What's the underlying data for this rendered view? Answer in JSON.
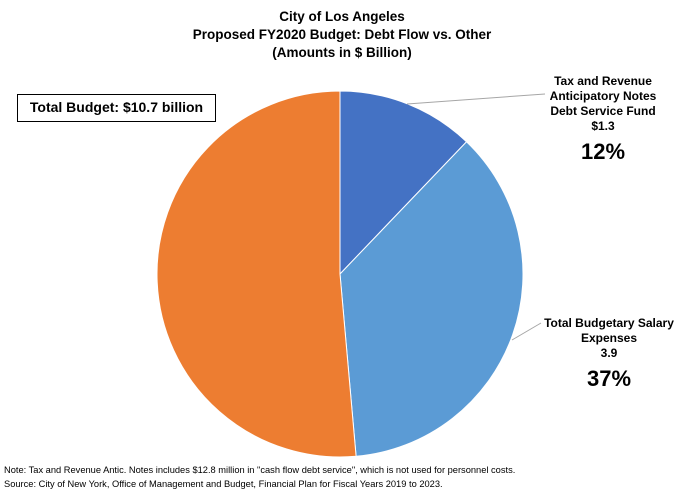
{
  "title": {
    "line1": "City of Los Angeles",
    "line2": "Proposed FY2020 Budget: Debt Flow vs. Other",
    "line3": "(Amounts in $ Billion)"
  },
  "total_box": "Total Budget: $10.7 billion",
  "notes": {
    "note": "Note: Tax and Revenue Antic. Notes includes $12.8 million in \"cash flow debt service\", which is not used for personnel costs.",
    "source": "Source: City of New York, Office of Management and Budget, Financial Plan for Fiscal Years 2019 to 2023."
  },
  "chart_data": {
    "type": "pie",
    "title": "City of Los Angeles Proposed FY2020 Budget: Debt Flow vs. Other (Amounts in $ Billion)",
    "start_angle_deg": 0,
    "direction": "clockwise",
    "slices": [
      {
        "label_lines": [
          "Tax and Revenue",
          "Anticipatory Notes",
          "Debt Service Fund"
        ],
        "value": 1.3,
        "value_text": "$1.3",
        "percent": 12,
        "percent_text": "12%",
        "color": "#4472C4"
      },
      {
        "label_lines": [
          "Total Budgetary Salary",
          "Expenses"
        ],
        "value": 3.9,
        "value_text": "3.9",
        "percent": 37,
        "percent_text": "37%",
        "color": "#5B9BD5"
      },
      {
        "label_lines": [],
        "value": 5.5,
        "value_text": "",
        "percent": 51,
        "percent_text": "",
        "color": "#ED7D31"
      }
    ]
  }
}
